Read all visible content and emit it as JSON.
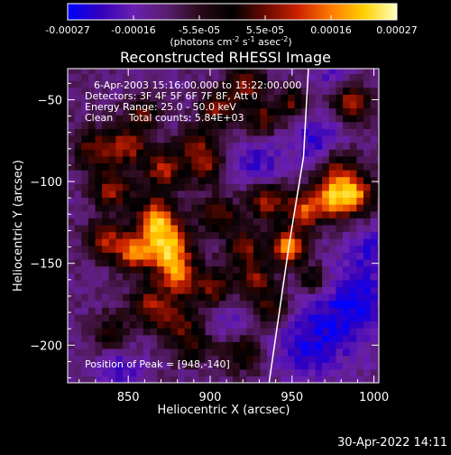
{
  "footer": {
    "timestamp": "30-Apr-2022 14:11"
  },
  "chart_data": {
    "type": "heatmap",
    "title": "Reconstructed RHESSI Image",
    "xlabel": "Heliocentric X (arcsec)",
    "ylabel": "Heliocentric Y (arcsec)",
    "xlim": [
      813,
      1003
    ],
    "ylim": [
      -223,
      -31
    ],
    "xticks": [
      850,
      900,
      950,
      1000
    ],
    "yticks": [
      -50,
      -100,
      -150,
      -200
    ],
    "annotations": [
      "6-Apr-2003 15:16:00.000 to 15:22:00.000",
      "Detectors: 3F 4F 5F 6F 7F 8F, Att 0",
      "Energy Range: 25.0 - 50.0 keV",
      "Clean     Total counts: 5.84E+03"
    ],
    "peak_label": "Position of Peak = [948,-140]",
    "peak": {
      "x": 948,
      "y": -140
    },
    "colorbar": {
      "range": [
        -0.00027,
        0.00027
      ],
      "ticks": [
        "-0.00027",
        "-0.00016",
        "-5.5e-05",
        "5.5e-05",
        "0.00016",
        "0.00027"
      ],
      "unit_parts": [
        "(photons cm",
        "-2",
        " s",
        "-1",
        " asec",
        "-2",
        ")"
      ],
      "colors": [
        "#0000ff",
        "#3300bb",
        "#6a1fb0",
        "#5a1e70",
        "#2a0a18",
        "#000000",
        "#6a0a00",
        "#cc2200",
        "#ff7a00",
        "#ffd000",
        "#ffffc0"
      ]
    },
    "limb_line": [
      [
        936,
        -223
      ],
      [
        948,
        -140
      ],
      [
        957,
        -85
      ],
      [
        960,
        -31
      ]
    ],
    "bright_sources": [
      {
        "x": 948,
        "y": -140,
        "amp": 1.0,
        "s": 7
      },
      {
        "x": 874,
        "y": -140,
        "amp": 0.95,
        "s": 10
      },
      {
        "x": 867,
        "y": -122,
        "amp": 0.85,
        "s": 9
      },
      {
        "x": 853,
        "y": -143,
        "amp": 0.75,
        "s": 8
      },
      {
        "x": 880,
        "y": -158,
        "amp": 0.7,
        "s": 9
      },
      {
        "x": 840,
        "y": -105,
        "amp": 0.65,
        "s": 8
      },
      {
        "x": 836,
        "y": -135,
        "amp": 0.6,
        "s": 8
      },
      {
        "x": 830,
        "y": -80,
        "amp": 0.55,
        "s": 9
      },
      {
        "x": 850,
        "y": -78,
        "amp": 0.6,
        "s": 8
      },
      {
        "x": 872,
        "y": -92,
        "amp": 0.65,
        "s": 9
      },
      {
        "x": 893,
        "y": -78,
        "amp": 0.55,
        "s": 8
      },
      {
        "x": 905,
        "y": -56,
        "amp": 0.55,
        "s": 8
      },
      {
        "x": 922,
        "y": -40,
        "amp": 0.6,
        "s": 8
      },
      {
        "x": 932,
        "y": -62,
        "amp": 0.55,
        "s": 7
      },
      {
        "x": 950,
        "y": -52,
        "amp": 0.5,
        "s": 7
      },
      {
        "x": 986,
        "y": -52,
        "amp": 0.7,
        "s": 8
      },
      {
        "x": 978,
        "y": -92,
        "amp": 0.55,
        "s": 9
      },
      {
        "x": 975,
        "y": -110,
        "amp": 0.85,
        "s": 9
      },
      {
        "x": 990,
        "y": -108,
        "amp": 0.7,
        "s": 8
      },
      {
        "x": 957,
        "y": -118,
        "amp": 0.7,
        "s": 8
      },
      {
        "x": 935,
        "y": -112,
        "amp": 0.65,
        "s": 8
      },
      {
        "x": 922,
        "y": -140,
        "amp": 0.55,
        "s": 8
      },
      {
        "x": 905,
        "y": -120,
        "amp": 0.55,
        "s": 8
      },
      {
        "x": 928,
        "y": -160,
        "amp": 0.55,
        "s": 8
      },
      {
        "x": 938,
        "y": -178,
        "amp": 0.5,
        "s": 7
      },
      {
        "x": 902,
        "y": -165,
        "amp": 0.55,
        "s": 8
      },
      {
        "x": 878,
        "y": -185,
        "amp": 0.5,
        "s": 9
      },
      {
        "x": 862,
        "y": -175,
        "amp": 0.55,
        "s": 8
      },
      {
        "x": 840,
        "y": -192,
        "amp": 0.4,
        "s": 8
      },
      {
        "x": 890,
        "y": -200,
        "amp": 0.45,
        "s": 8
      },
      {
        "x": 920,
        "y": -205,
        "amp": 0.45,
        "s": 8
      },
      {
        "x": 898,
        "y": -92,
        "amp": 0.45,
        "s": 7
      },
      {
        "x": 858,
        "y": -58,
        "amp": 0.5,
        "s": 7
      },
      {
        "x": 963,
        "y": -160,
        "amp": 0.45,
        "s": 7
      }
    ],
    "dark_regions": [
      {
        "x": 988,
        "y": -175,
        "amp": 0.85,
        "s": 18
      },
      {
        "x": 960,
        "y": -200,
        "amp": 0.7,
        "s": 15
      },
      {
        "x": 965,
        "y": -75,
        "amp": 0.7,
        "s": 12
      },
      {
        "x": 930,
        "y": -88,
        "amp": 0.6,
        "s": 10
      },
      {
        "x": 845,
        "y": -215,
        "amp": 0.55,
        "s": 10
      },
      {
        "x": 1000,
        "y": -140,
        "amp": 0.55,
        "s": 10
      },
      {
        "x": 912,
        "y": -185,
        "amp": 0.4,
        "s": 9
      },
      {
        "x": 975,
        "y": -35,
        "amp": 0.5,
        "s": 8
      }
    ]
  }
}
